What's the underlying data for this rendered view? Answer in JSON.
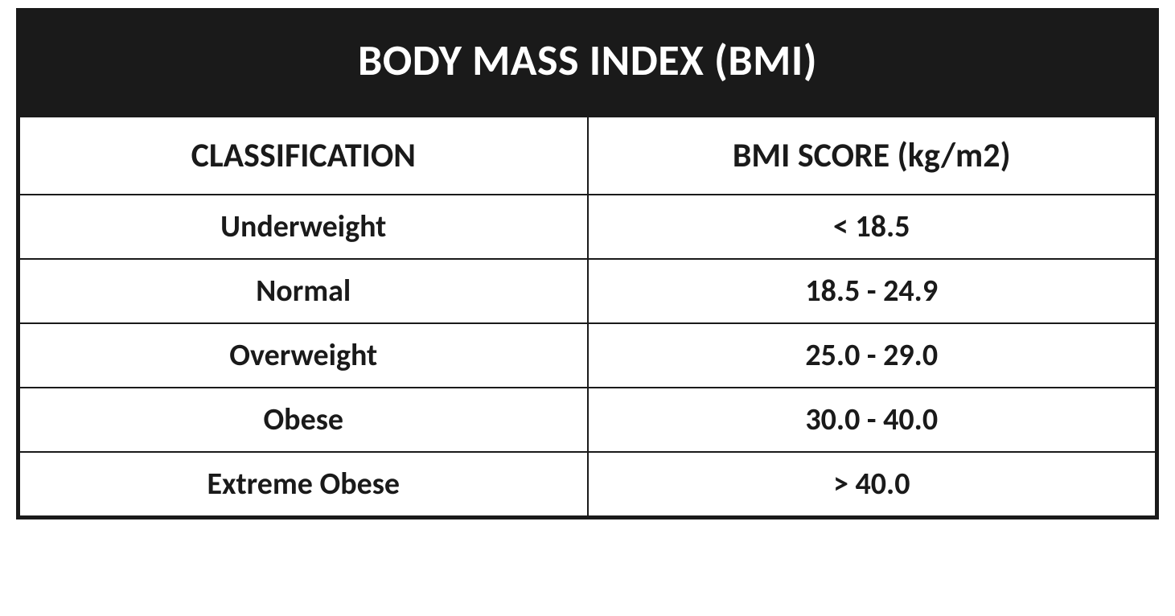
{
  "table": {
    "type": "table",
    "title": "BODY MASS INDEX (BMI)",
    "title_bg": "#1a1a1a",
    "title_color": "#ffffff",
    "title_fontsize": 54,
    "title_fontweight": 700,
    "border_color": "#1a1a1a",
    "border_width": 2,
    "outer_border_width": 3,
    "background_color": "#ffffff",
    "text_color": "#1a1a1a",
    "header_fontsize": 42,
    "header_fontweight": 700,
    "cell_fontsize": 38,
    "cell_fontweight": 700,
    "col_widths_pct": [
      50,
      50
    ],
    "columns": [
      "CLASSIFICATION",
      "BMI SCORE (kg/m2)"
    ],
    "rows": [
      [
        "Underweight",
        "< 18.5"
      ],
      [
        "Normal",
        "18.5 - 24.9"
      ],
      [
        "Overweight",
        "25.0 - 29.0"
      ],
      [
        "Obese",
        "30.0 - 40.0"
      ],
      [
        "Extreme Obese",
        "> 40.0"
      ]
    ]
  }
}
